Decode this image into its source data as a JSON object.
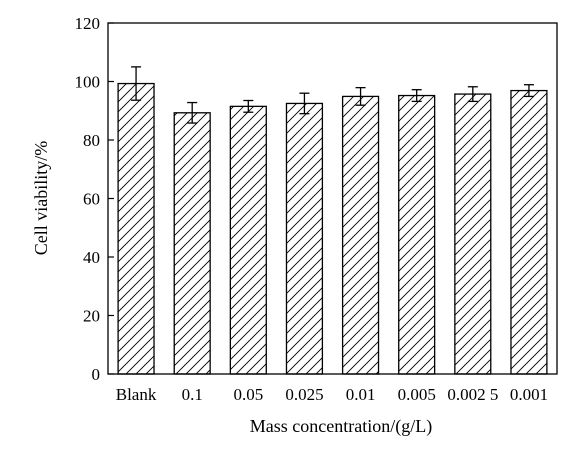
{
  "chart_data": {
    "type": "bar",
    "xlabel": "Mass concentration/(g/L)",
    "ylabel": "Cell viability/%",
    "ylim": [
      0,
      120
    ],
    "yticks": [
      0,
      20,
      40,
      60,
      80,
      100,
      120
    ],
    "categories": [
      "Blank",
      "0.1",
      "0.05",
      "0.025",
      "0.01",
      "0.005",
      "0.002 5",
      "0.001"
    ],
    "values": [
      99.3,
      89.3,
      91.5,
      92.5,
      94.9,
      95.2,
      95.7,
      96.9
    ],
    "errors": [
      5.7,
      3.5,
      2.0,
      3.5,
      3.0,
      2.0,
      2.5,
      2.0
    ],
    "bar_fill": "hatched",
    "colors": {
      "stroke": "#000000",
      "background": "#ffffff"
    },
    "grid": false,
    "legend": "none"
  }
}
